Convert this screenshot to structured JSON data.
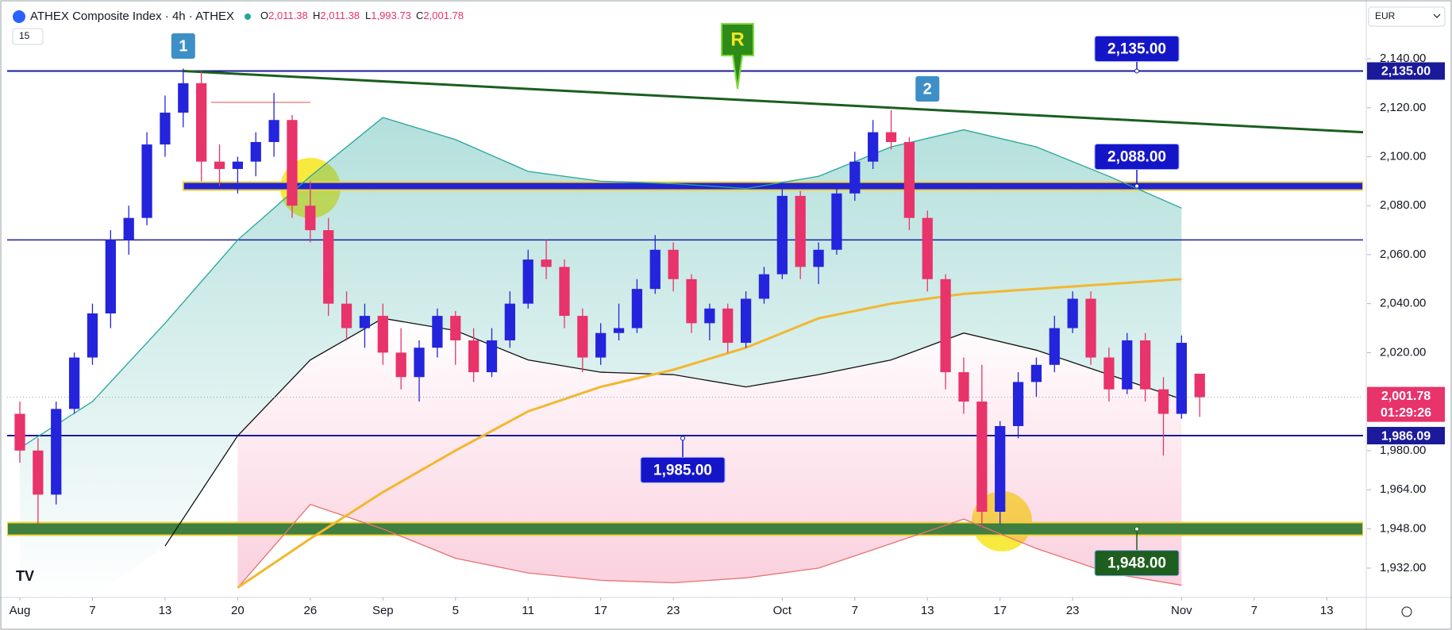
{
  "chart_data": {
    "type": "candlestick",
    "title": "ATHEX Composite Index · 4h · ATHEX",
    "header_ohlc": [
      {
        "key": "O",
        "label": "2,011.38"
      },
      {
        "key": "H",
        "label": "2,011.38"
      },
      {
        "key": "L",
        "label": "1,993.73"
      },
      {
        "key": "C",
        "label": "2,001.78"
      }
    ],
    "interval_badge": "15",
    "currency": "EUR",
    "up_color": "#2424dc",
    "down_color": "#e8336b",
    "x": [
      0,
      1,
      2,
      3,
      4,
      5,
      6,
      7,
      8,
      9,
      10,
      11,
      12,
      13,
      14,
      15,
      16,
      17,
      18,
      19,
      20,
      21,
      22,
      23,
      24,
      25,
      26,
      27,
      28,
      29,
      30,
      31,
      32,
      33,
      34,
      35,
      36,
      37,
      38,
      39,
      40,
      41,
      42,
      43,
      44,
      45,
      46,
      47,
      48,
      49,
      50,
      51,
      52,
      53,
      54,
      55,
      56,
      57,
      58,
      59,
      60,
      61,
      62,
      63,
      64,
      65
    ],
    "open": [
      1995,
      1980,
      1962,
      1997,
      2018,
      2036,
      2066,
      2075,
      2105,
      2118,
      2130,
      2098,
      2095,
      2098,
      2106,
      2115,
      2080,
      2070,
      2040,
      2030,
      2035,
      2020,
      2010,
      2022,
      2035,
      2025,
      2012,
      2025,
      2040,
      2058,
      2055,
      2035,
      2018,
      2028,
      2030,
      2046,
      2062,
      2050,
      2032,
      2038,
      2024,
      2042,
      2052,
      2084,
      2055,
      2062,
      2085,
      2098,
      2110,
      2106,
      2075,
      2050,
      2012,
      2000,
      1955,
      1990,
      2008,
      2015,
      2030,
      2042,
      2018,
      2005,
      2025,
      2005,
      1995,
      2011.38
    ],
    "high": [
      2000,
      1985,
      2000,
      2020,
      2040,
      2070,
      2080,
      2110,
      2125,
      2136,
      2135,
      2105,
      2100,
      2110,
      2126,
      2117,
      2090,
      2075,
      2045,
      2040,
      2040,
      2030,
      2025,
      2038,
      2037,
      2030,
      2030,
      2045,
      2062,
      2066,
      2058,
      2038,
      2032,
      2040,
      2050,
      2068,
      2065,
      2052,
      2040,
      2040,
      2045,
      2055,
      2088,
      2086,
      2065,
      2088,
      2102,
      2115,
      2119,
      2108,
      2078,
      2052,
      2018,
      2015,
      1992,
      2012,
      2018,
      2035,
      2045,
      2045,
      2022,
      2028,
      2028,
      2010,
      2027,
      2011.38
    ],
    "low": [
      1975,
      1950,
      1958,
      1995,
      2015,
      2030,
      2060,
      2072,
      2100,
      2112,
      2090,
      2088,
      2085,
      2092,
      2100,
      2075,
      2065,
      2035,
      2025,
      2022,
      2015,
      2005,
      2000,
      2018,
      2015,
      2008,
      2010,
      2022,
      2038,
      2050,
      2030,
      2012,
      2015,
      2025,
      2028,
      2044,
      2045,
      2028,
      2025,
      2020,
      2022,
      2040,
      2050,
      2050,
      2048,
      2060,
      2082,
      2095,
      2103,
      2070,
      2045,
      2005,
      1995,
      1948,
      1950,
      1985,
      2002,
      2012,
      2028,
      2015,
      2000,
      2003,
      2000,
      1978,
      1993,
      1993.73
    ],
    "close": [
      1980,
      1962,
      1997,
      2018,
      2036,
      2066,
      2075,
      2105,
      2118,
      2130,
      2098,
      2095,
      2098,
      2106,
      2115,
      2080,
      2070,
      2040,
      2030,
      2035,
      2020,
      2010,
      2022,
      2035,
      2025,
      2012,
      2025,
      2040,
      2058,
      2055,
      2035,
      2018,
      2028,
      2030,
      2046,
      2062,
      2050,
      2032,
      2038,
      2024,
      2042,
      2052,
      2084,
      2055,
      2062,
      2085,
      2098,
      2110,
      2106,
      2075,
      2050,
      2012,
      2000,
      1955,
      1990,
      2008,
      2015,
      2030,
      2042,
      2018,
      2005,
      2025,
      2005,
      1995,
      2024,
      2001.78
    ],
    "indicator_x": [
      0,
      4,
      8,
      12,
      16,
      20,
      24,
      28,
      32,
      36,
      40,
      44,
      48,
      52,
      56,
      60,
      64
    ],
    "indicators": [
      {
        "color": "#26a69a",
        "fill": "#26a69a",
        "values": [
          1981,
          2000,
          2032,
          2066,
          2092,
          2116,
          2107,
          2094,
          2090,
          2089,
          2087,
          2092,
          2104,
          2111,
          2104,
          2092,
          2079
        ]
      },
      {
        "color": "#111111",
        "values": [
          null,
          null,
          1941,
          1986,
          2017,
          2034,
          2029,
          2017,
          2012,
          2011,
          2006,
          2011,
          2017,
          2028,
          2021,
          2011,
          2001
        ]
      },
      {
        "color": "#e57373",
        "fill": "#f06292",
        "values": [
          null,
          null,
          null,
          1924,
          1958,
          1948,
          1936,
          1930,
          1927,
          1926,
          1928,
          1932,
          1942,
          1952,
          1940,
          1930,
          1925
        ]
      },
      {
        "color": "#f2b730",
        "values": [
          null,
          null,
          null,
          1924,
          1944,
          1963,
          1980,
          1996,
          2006,
          2013,
          2022,
          2034,
          2040,
          2044,
          2046,
          2048,
          2050
        ]
      }
    ],
    "trendline": {
      "color": "#1b5e20",
      "x": [
        9,
        74
      ],
      "values": [
        2135,
        2110
      ]
    },
    "zones": [
      {
        "value": 2088,
        "color": "#2323d0",
        "border": "#f2d43a"
      },
      {
        "value": 1948,
        "color": "#3f7f3f",
        "border": "#f2d43a"
      }
    ],
    "levels": [
      {
        "value": 2135,
        "label": "2,135.00",
        "color": "#1a1a9a"
      },
      {
        "value": 2066,
        "color": "#1a1a9a"
      },
      {
        "value": 1986.09,
        "label": "1,986.09",
        "color": "#1a1a9a"
      }
    ],
    "callouts": [
      {
        "value": 2135,
        "label": "2,135.00",
        "color": "#1515c8"
      },
      {
        "value": 2088,
        "label": "2,088.00",
        "color": "#1515c8"
      },
      {
        "value": 1985,
        "label": "1,985.00",
        "color": "#1515c8"
      },
      {
        "value": 1948,
        "label": "1,948.00",
        "color": "#1e5e1e"
      }
    ],
    "markers": [
      {
        "label": "1",
        "color": "#3d8fc6"
      },
      {
        "label": "2",
        "color": "#3d8fc6"
      },
      {
        "label": "R",
        "color": "#2e8b1a"
      }
    ],
    "last_price": {
      "value": 2001.78,
      "label": "2,001.78",
      "color": "#e8336b"
    },
    "countdown": "01:29:26",
    "xlim": [
      -0.7,
      74
    ],
    "xticks": [
      {
        "value": 0,
        "label": "Aug"
      },
      {
        "value": 4,
        "label": "7"
      },
      {
        "value": 8,
        "label": "13"
      },
      {
        "value": 12,
        "label": "20"
      },
      {
        "value": 16,
        "label": "26"
      },
      {
        "value": 20,
        "label": "Sep"
      },
      {
        "value": 24,
        "label": "5"
      },
      {
        "value": 28,
        "label": "11"
      },
      {
        "value": 32,
        "label": "17"
      },
      {
        "value": 36,
        "label": "23"
      },
      {
        "value": 42,
        "label": "Oct"
      },
      {
        "value": 46,
        "label": "7"
      },
      {
        "value": 50,
        "label": "13"
      },
      {
        "value": 54,
        "label": "17"
      },
      {
        "value": 58,
        "label": "23"
      },
      {
        "value": 64,
        "label": "Nov"
      },
      {
        "value": 68,
        "label": "7"
      },
      {
        "value": 72,
        "label": "13"
      }
    ],
    "ylim": [
      1920,
      2164
    ],
    "yticks": [
      {
        "value": 2140,
        "label": "2,140.00"
      },
      {
        "value": 2120,
        "label": "2,120.00"
      },
      {
        "value": 2100,
        "label": "2,100.00"
      },
      {
        "value": 2080,
        "label": "2,080.00"
      },
      {
        "value": 2060,
        "label": "2,060.00"
      },
      {
        "value": 2040,
        "label": "2,040.00"
      },
      {
        "value": 2020,
        "label": "2,020.00"
      },
      {
        "value": 1980,
        "label": "1,980.00"
      },
      {
        "value": 1964,
        "label": "1,964.00"
      },
      {
        "value": 1948,
        "label": "1,948.00"
      },
      {
        "value": 1932,
        "label": "1,932.00"
      }
    ]
  }
}
